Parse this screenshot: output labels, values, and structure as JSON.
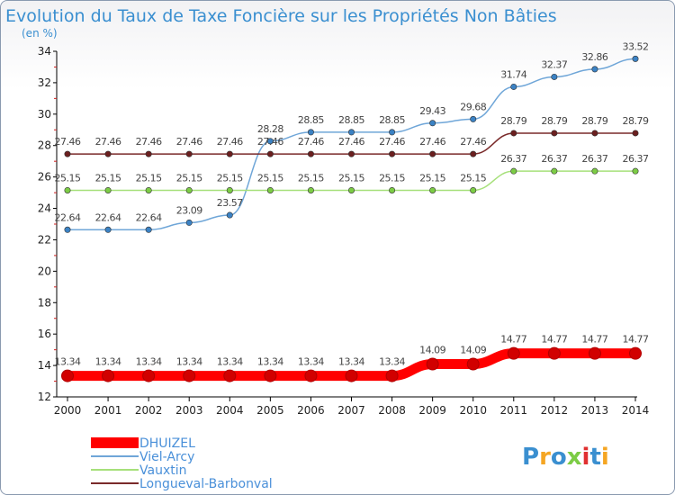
{
  "chart_data": {
    "type": "line",
    "title": "Evolution du Taux de Taxe Foncière sur les Propriétés Non Bâties",
    "subtitle": "(en %)",
    "xlabel": "",
    "ylabel": "",
    "ylim": [
      12,
      34
    ],
    "yticks": [
      12,
      14,
      16,
      18,
      20,
      22,
      24,
      26,
      28,
      30,
      32,
      34
    ],
    "grid": false,
    "legend_position": "bottom-left",
    "categories": [
      "2000",
      "2001",
      "2002",
      "2003",
      "2004",
      "2005",
      "2006",
      "2007",
      "2008",
      "2009",
      "2010",
      "2011",
      "2012",
      "2013",
      "2014"
    ],
    "series": [
      {
        "name": "DHUIZEL",
        "color": "#ff0000",
        "marker_color": "#d10000",
        "emphasis": true,
        "values": [
          13.34,
          13.34,
          13.34,
          13.34,
          13.34,
          13.34,
          13.34,
          13.34,
          13.34,
          14.09,
          14.09,
          14.77,
          14.77,
          14.77,
          14.77
        ],
        "labels": [
          "13.34",
          "13.34",
          "13.34",
          "13.34",
          "13.34",
          "13.34",
          "13.34",
          "13.34",
          "13.34",
          "14.09",
          "14.09",
          "14.77",
          "14.77",
          "14.77",
          "14.77"
        ]
      },
      {
        "name": "Viel-Arcy",
        "color": "#6fa6d8",
        "marker_color": "#3b82c4",
        "emphasis": false,
        "values": [
          22.64,
          22.64,
          22.64,
          23.09,
          23.57,
          28.28,
          28.85,
          28.85,
          28.85,
          29.43,
          29.68,
          31.74,
          32.37,
          32.86,
          33.52
        ],
        "labels": [
          "22.64",
          "22.64",
          "22.64",
          "23.09",
          "23.57",
          "28.28",
          "28.85",
          "28.85",
          "28.85",
          "29.43",
          "29.68",
          "31.74",
          "32.37",
          "32.86",
          "33.52"
        ]
      },
      {
        "name": "Vauxtin",
        "color": "#a6e07a",
        "marker_color": "#7ccc45",
        "emphasis": false,
        "values": [
          25.15,
          25.15,
          25.15,
          25.15,
          25.15,
          25.15,
          25.15,
          25.15,
          25.15,
          25.15,
          25.15,
          26.37,
          26.37,
          26.37,
          26.37
        ],
        "labels": [
          "25.15",
          "25.15",
          "25.15",
          "25.15",
          "25.15",
          "25.15",
          "25.15",
          "25.15",
          "25.15",
          "25.15",
          "25.15",
          "26.37",
          "26.37",
          "26.37",
          "26.37"
        ]
      },
      {
        "name": "Longueval-Barbonval",
        "color": "#7a2a2a",
        "marker_color": "#6b1f1f",
        "emphasis": false,
        "values": [
          27.46,
          27.46,
          27.46,
          27.46,
          27.46,
          27.46,
          27.46,
          27.46,
          27.46,
          27.46,
          27.46,
          28.79,
          28.79,
          28.79,
          28.79
        ],
        "labels": [
          "27.46",
          "27.46",
          "27.46",
          "27.46",
          "27.46",
          "27.46",
          "27.46",
          "27.46",
          "27.46",
          "27.46",
          "27.46",
          "28.79",
          "28.79",
          "28.79",
          "28.79"
        ]
      }
    ]
  },
  "logo": {
    "text": "Proxiti",
    "letter_colors": [
      "#3a8fd0",
      "#f5a623",
      "#3a8fd0",
      "#7ccc45",
      "#e03030",
      "#3a8fd0",
      "#f5a623"
    ]
  }
}
